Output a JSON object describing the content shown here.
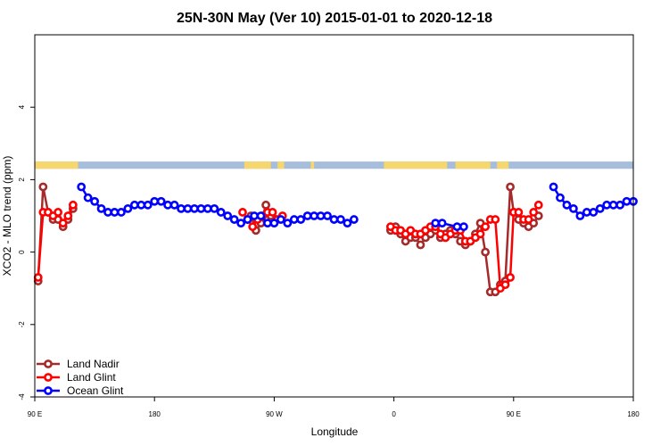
{
  "chart_data": {
    "type": "line",
    "title": "25N-30N May (Ver 10)   2015-01-01 to 2020-12-18",
    "xlabel": "Longitude",
    "ylabel": "XCO2 - MLO trend (ppm)",
    "xlim": [
      -90,
      270
    ],
    "ylim": [
      -4,
      6
    ],
    "x_ticks": [
      {
        "value": -90,
        "label": "90 E"
      },
      {
        "value": -18,
        "label": "180"
      },
      {
        "value": 54,
        "label": "90 W"
      },
      {
        "value": 126,
        "label": "0"
      },
      {
        "value": 198,
        "label": "90 E"
      },
      {
        "value": 270,
        "label": "180"
      }
    ],
    "y_ticks": [
      {
        "value": -4,
        "label": "-4"
      },
      {
        "value": -2,
        "label": "-2"
      },
      {
        "value": 0,
        "label": "0"
      },
      {
        "value": 2,
        "label": "2"
      },
      {
        "value": 4,
        "label": "4"
      }
    ],
    "map_strip": {
      "y_range": [
        2.3,
        2.5
      ],
      "ocean_color": "#a6bddb",
      "land_color": "#f5d76e",
      "land_segments": [
        [
          -90,
          -64
        ],
        [
          36,
          52
        ],
        [
          56,
          60
        ],
        [
          76,
          78
        ],
        [
          120,
          158
        ],
        [
          163,
          184
        ],
        [
          188,
          195
        ]
      ]
    },
    "legend": {
      "position": "bottom-left"
    },
    "series": [
      {
        "name": "Land Nadir",
        "color": "#a52a2a",
        "x": [
          -88,
          -85,
          -82,
          -79,
          -76,
          -73,
          -70,
          -67,
          -63,
          -60,
          40,
          43,
          46,
          49,
          52,
          55,
          124,
          127,
          130,
          133,
          136,
          139,
          142,
          145,
          148,
          151,
          154,
          157,
          160,
          163,
          166,
          169,
          172,
          175,
          178,
          181,
          184,
          187,
          190,
          193,
          196,
          198,
          201,
          204,
          207,
          210,
          213,
          216,
          219,
          222
        ],
        "y": [
          -0.8,
          1.8,
          1.1,
          0.9,
          0.9,
          0.7,
          0.9,
          1.2,
          null,
          null,
          1.0,
          0.6,
          0.8,
          1.3,
          1.0,
          0.9,
          0.6,
          0.7,
          0.5,
          0.3,
          0.4,
          0.4,
          0.2,
          0.4,
          0.5,
          0.6,
          0.4,
          0.5,
          0.6,
          0.5,
          0.3,
          0.2,
          0.3,
          0.5,
          0.8,
          0.0,
          -1.1,
          -1.1,
          -0.9,
          -0.8,
          1.8,
          1.1,
          0.9,
          0.8,
          0.7,
          0.8,
          1.0,
          null,
          null,
          null
        ]
      },
      {
        "name": "Land Glint",
        "color": "#ff0000",
        "x": [
          -88,
          -85,
          -82,
          -79,
          -76,
          -73,
          -70,
          -67,
          35,
          38,
          41,
          44,
          47,
          50,
          53,
          56,
          59,
          124,
          127,
          130,
          133,
          136,
          139,
          142,
          145,
          148,
          151,
          154,
          157,
          160,
          163,
          166,
          169,
          172,
          175,
          178,
          181,
          184,
          187,
          190,
          193,
          196,
          198,
          201,
          204,
          207,
          210,
          213
        ],
        "y": [
          -0.7,
          1.1,
          1.1,
          1.0,
          1.1,
          0.8,
          1.0,
          1.3,
          1.1,
          0.9,
          0.7,
          0.9,
          1.0,
          1.1,
          1.1,
          0.9,
          1.0,
          0.7,
          0.6,
          0.6,
          0.5,
          0.6,
          0.5,
          0.5,
          0.6,
          0.7,
          0.7,
          0.5,
          0.4,
          0.5,
          0.6,
          0.6,
          0.3,
          0.3,
          0.4,
          0.5,
          0.7,
          0.9,
          0.9,
          -1.0,
          -0.9,
          -0.7,
          1.1,
          1.1,
          0.9,
          0.9,
          1.1,
          1.3
        ]
      },
      {
        "name": "Ocean Glint",
        "color": "#0000ff",
        "x": [
          -62,
          -58,
          -54,
          -50,
          -46,
          -42,
          -38,
          -34,
          -30,
          -26,
          -22,
          -18,
          -14,
          -10,
          -6,
          -2,
          2,
          6,
          10,
          14,
          18,
          22,
          26,
          30,
          34,
          38,
          42,
          46,
          50,
          54,
          58,
          62,
          66,
          70,
          74,
          78,
          82,
          86,
          90,
          94,
          98,
          102,
          106,
          110,
          114,
          118,
          122,
          151,
          155,
          164,
          168,
          222,
          226,
          230,
          234,
          238,
          242,
          246,
          250,
          254,
          258,
          262,
          266,
          270
        ],
        "y": [
          1.8,
          1.5,
          1.4,
          1.2,
          1.1,
          1.1,
          1.1,
          1.2,
          1.3,
          1.3,
          1.3,
          1.4,
          1.4,
          1.3,
          1.3,
          1.2,
          1.2,
          1.2,
          1.2,
          1.2,
          1.2,
          1.1,
          1.0,
          0.9,
          0.8,
          0.9,
          1.0,
          1.0,
          0.8,
          0.8,
          0.9,
          0.8,
          0.9,
          0.9,
          1.0,
          1.0,
          1.0,
          1.0,
          0.9,
          0.9,
          0.8,
          0.9,
          null,
          null,
          null,
          null,
          null,
          0.8,
          0.8,
          0.7,
          0.7,
          1.8,
          1.5,
          1.3,
          1.2,
          1.0,
          1.1,
          1.1,
          1.2,
          1.3,
          1.3,
          1.3,
          1.4,
          1.4
        ]
      }
    ]
  }
}
